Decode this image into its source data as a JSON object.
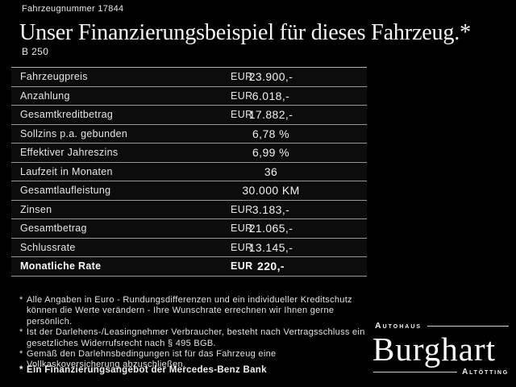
{
  "header": {
    "vehicle_number": "Fahrzeugnummer 17844",
    "title": "Unser Finanzierungsbeispiel für dieses Fahrzeug.*",
    "model": "B 250"
  },
  "table": {
    "rows": [
      {
        "label": "Fahrzeugpreis",
        "unit": "EUR",
        "value": "23.900,-",
        "bold": false
      },
      {
        "label": "Anzahlung",
        "unit": "EUR",
        "value": "6.018,-",
        "bold": false
      },
      {
        "label": "Gesamtkreditbetrag",
        "unit": "EUR",
        "value": "17.882,-",
        "bold": false
      },
      {
        "label": "Sollzins p.a. gebunden",
        "unit": "",
        "value": "6,78 %",
        "bold": false
      },
      {
        "label": "Effektiver Jahreszins",
        "unit": "",
        "value": "6,99 %",
        "bold": false
      },
      {
        "label": "Laufzeit in Monaten",
        "unit": "",
        "value": "36",
        "bold": false
      },
      {
        "label": "Gesamtlaufleistung",
        "unit": "",
        "value": "30.000 KM",
        "bold": false
      },
      {
        "label": "Zinsen",
        "unit": "EUR",
        "value": "3.183,-",
        "bold": false
      },
      {
        "label": "Gesamtbetrag",
        "unit": "EUR",
        "value": "21.065,-",
        "bold": false
      },
      {
        "label": "Schlussrate",
        "unit": "EUR",
        "value": "13.145,-",
        "bold": false
      },
      {
        "label": "Monatliche Rate",
        "unit": "EUR",
        "value": "220,-",
        "bold": true
      }
    ]
  },
  "footnotes": {
    "marker": "*",
    "items": [
      "Alle Angaben in Euro - Rundungsdifferenzen und ein individueller Kreditschutz\nkönnen die Werte verändern - Ihre Wunschrate errechnen wir Ihnen gerne persönlich.",
      "Ist der Darlehens-/Leasingnehmer Verbraucher, besteht nach Vertragsschluss ein\ngesetzliches Widerrufsrecht nach § 495 BGB.",
      "Gemäß den Darlehnsbedingungen ist für das Fahrzeug eine\nVollkaskoversicherung abzuschließen."
    ],
    "bank_note": "Ein Finanzierungsangebot der Mercedes-Benz Bank"
  },
  "logo": {
    "top": "Autohaus",
    "name": "Burghart",
    "bottom": "Altötting"
  },
  "colors": {
    "background": "#000000",
    "table_background": "#0c0c0c",
    "divider": "#979797",
    "text": "#ececec"
  }
}
